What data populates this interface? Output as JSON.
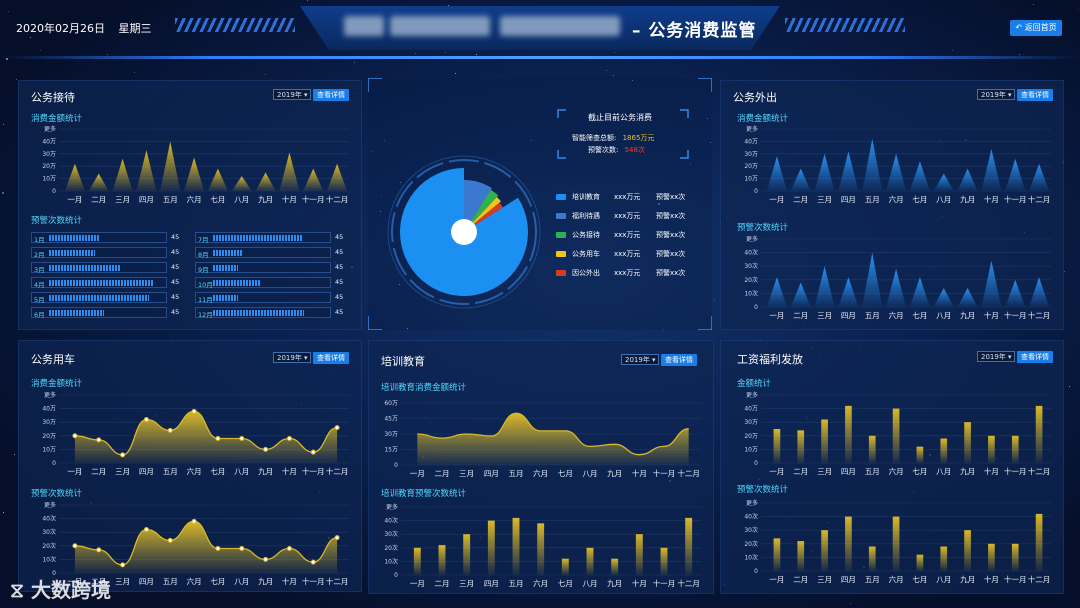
{
  "header": {
    "date": "2020年02月26日",
    "weekday": "星期三",
    "title": "– 公务消费监管",
    "back_label": "返回首页"
  },
  "months": [
    "一月",
    "二月",
    "三月",
    "四月",
    "五月",
    "六月",
    "七月",
    "八月",
    "九月",
    "十月",
    "十一月",
    "十二月"
  ],
  "controls": {
    "year": "2019年",
    "detail_label": "查看详情"
  },
  "reception": {
    "title": "公务接待",
    "amount_label": "消费金额统计",
    "alert_label": "预警次数统计",
    "yticks": [
      "更多",
      "40万",
      "30万",
      "20万",
      "10万",
      "0"
    ],
    "amount_values": [
      22,
      14,
      26,
      33,
      40,
      27,
      18,
      12,
      15,
      31,
      18,
      22
    ],
    "alert_rows": [
      {
        "label": "1月",
        "value": "45",
        "fill": 0.45
      },
      {
        "label": "2月",
        "value": "45",
        "fill": 0.4
      },
      {
        "label": "3月",
        "value": "45",
        "fill": 0.62
      },
      {
        "label": "4月",
        "value": "45",
        "fill": 0.92
      },
      {
        "label": "5月",
        "value": "45",
        "fill": 0.88
      },
      {
        "label": "6月",
        "value": "45",
        "fill": 0.48
      },
      {
        "label": "7月",
        "value": "45",
        "fill": 0.78
      },
      {
        "label": "8月",
        "value": "45",
        "fill": 0.25
      },
      {
        "label": "9月",
        "value": "45",
        "fill": 0.22
      },
      {
        "label": "10月",
        "value": "45",
        "fill": 0.42
      },
      {
        "label": "11月",
        "value": "45",
        "fill": 0.22
      },
      {
        "label": "12月",
        "value": "45",
        "fill": 0.8
      }
    ]
  },
  "center": {
    "summary_title": "截止目前公务消费",
    "total_label": "智能筛查总额:",
    "total_value": "1865万元",
    "alert_label": "预警次数:",
    "alert_value": "548次",
    "legend": [
      {
        "name": "培训教育",
        "amount": "xxx万元",
        "alert": "预警xx次",
        "color": "#1b8ff2"
      },
      {
        "name": "福利待遇",
        "amount": "xxx万元",
        "alert": "预警xx次",
        "color": "#3b78d0"
      },
      {
        "name": "公务接待",
        "amount": "xxx万元",
        "alert": "预警xx次",
        "color": "#31b050"
      },
      {
        "name": "公务用车",
        "amount": "xxx万元",
        "alert": "预警xx次",
        "color": "#f0c419"
      },
      {
        "name": "因公外出",
        "amount": "xxx万元",
        "alert": "预警xx次",
        "color": "#d83a22"
      }
    ],
    "pie_values": [
      84,
      9,
      3,
      2,
      2
    ]
  },
  "trip": {
    "title": "公务外出",
    "amount_label": "消费金额统计",
    "alert_label": "预警次数统计",
    "amount_yticks": [
      "更多",
      "40万",
      "30万",
      "20万",
      "10万",
      "0"
    ],
    "alert_yticks": [
      "更多",
      "40次",
      "30次",
      "20次",
      "10次",
      "0"
    ],
    "amount_values": [
      28,
      18,
      30,
      32,
      42,
      30,
      24,
      14,
      18,
      34,
      26,
      22
    ],
    "alert_values": [
      22,
      18,
      30,
      22,
      40,
      28,
      22,
      14,
      14,
      34,
      20,
      22
    ]
  },
  "car": {
    "title": "公务用车",
    "amount_label": "消费金额统计",
    "alert_label": "预警次数统计",
    "amount_yticks": [
      "更多",
      "40万",
      "30万",
      "20万",
      "10万",
      "0"
    ],
    "alert_yticks": [
      "更多",
      "40次",
      "30次",
      "20次",
      "10次",
      "0"
    ],
    "amount_values": [
      20,
      17,
      6,
      32,
      24,
      38,
      18,
      18,
      10,
      18,
      8,
      26
    ],
    "alert_values": [
      20,
      17,
      6,
      32,
      24,
      38,
      18,
      18,
      10,
      18,
      8,
      26
    ]
  },
  "training": {
    "title": "培训教育",
    "amount_label": "培训教育消费金额统计",
    "alert_label": "培训教育预警次数统计",
    "amount_yticks": [
      "60万",
      "45万",
      "30万",
      "15万",
      "0"
    ],
    "alert_yticks": [
      "更多",
      "40次",
      "30次",
      "20次",
      "10次",
      "0"
    ],
    "amount_values": [
      30,
      26,
      30,
      28,
      50,
      33,
      33,
      18,
      20,
      10,
      18,
      35
    ],
    "alert_values": [
      20,
      22,
      30,
      40,
      42,
      38,
      12,
      20,
      12,
      30,
      20,
      42
    ]
  },
  "salary": {
    "title": "工资福利发放",
    "amount_label": "金额统计",
    "alert_label": "预警次数统计",
    "amount_yticks": [
      "更多",
      "40万",
      "30万",
      "20万",
      "10万",
      "0"
    ],
    "alert_yticks": [
      "更多",
      "40次",
      "30次",
      "20次",
      "10次",
      "0"
    ],
    "amount_values": [
      25,
      24,
      32,
      42,
      20,
      40,
      12,
      18,
      30,
      20,
      20,
      42
    ],
    "alert_values": [
      24,
      22,
      30,
      40,
      18,
      40,
      12,
      18,
      30,
      20,
      20,
      42
    ]
  },
  "watermark": "大数跨境"
}
